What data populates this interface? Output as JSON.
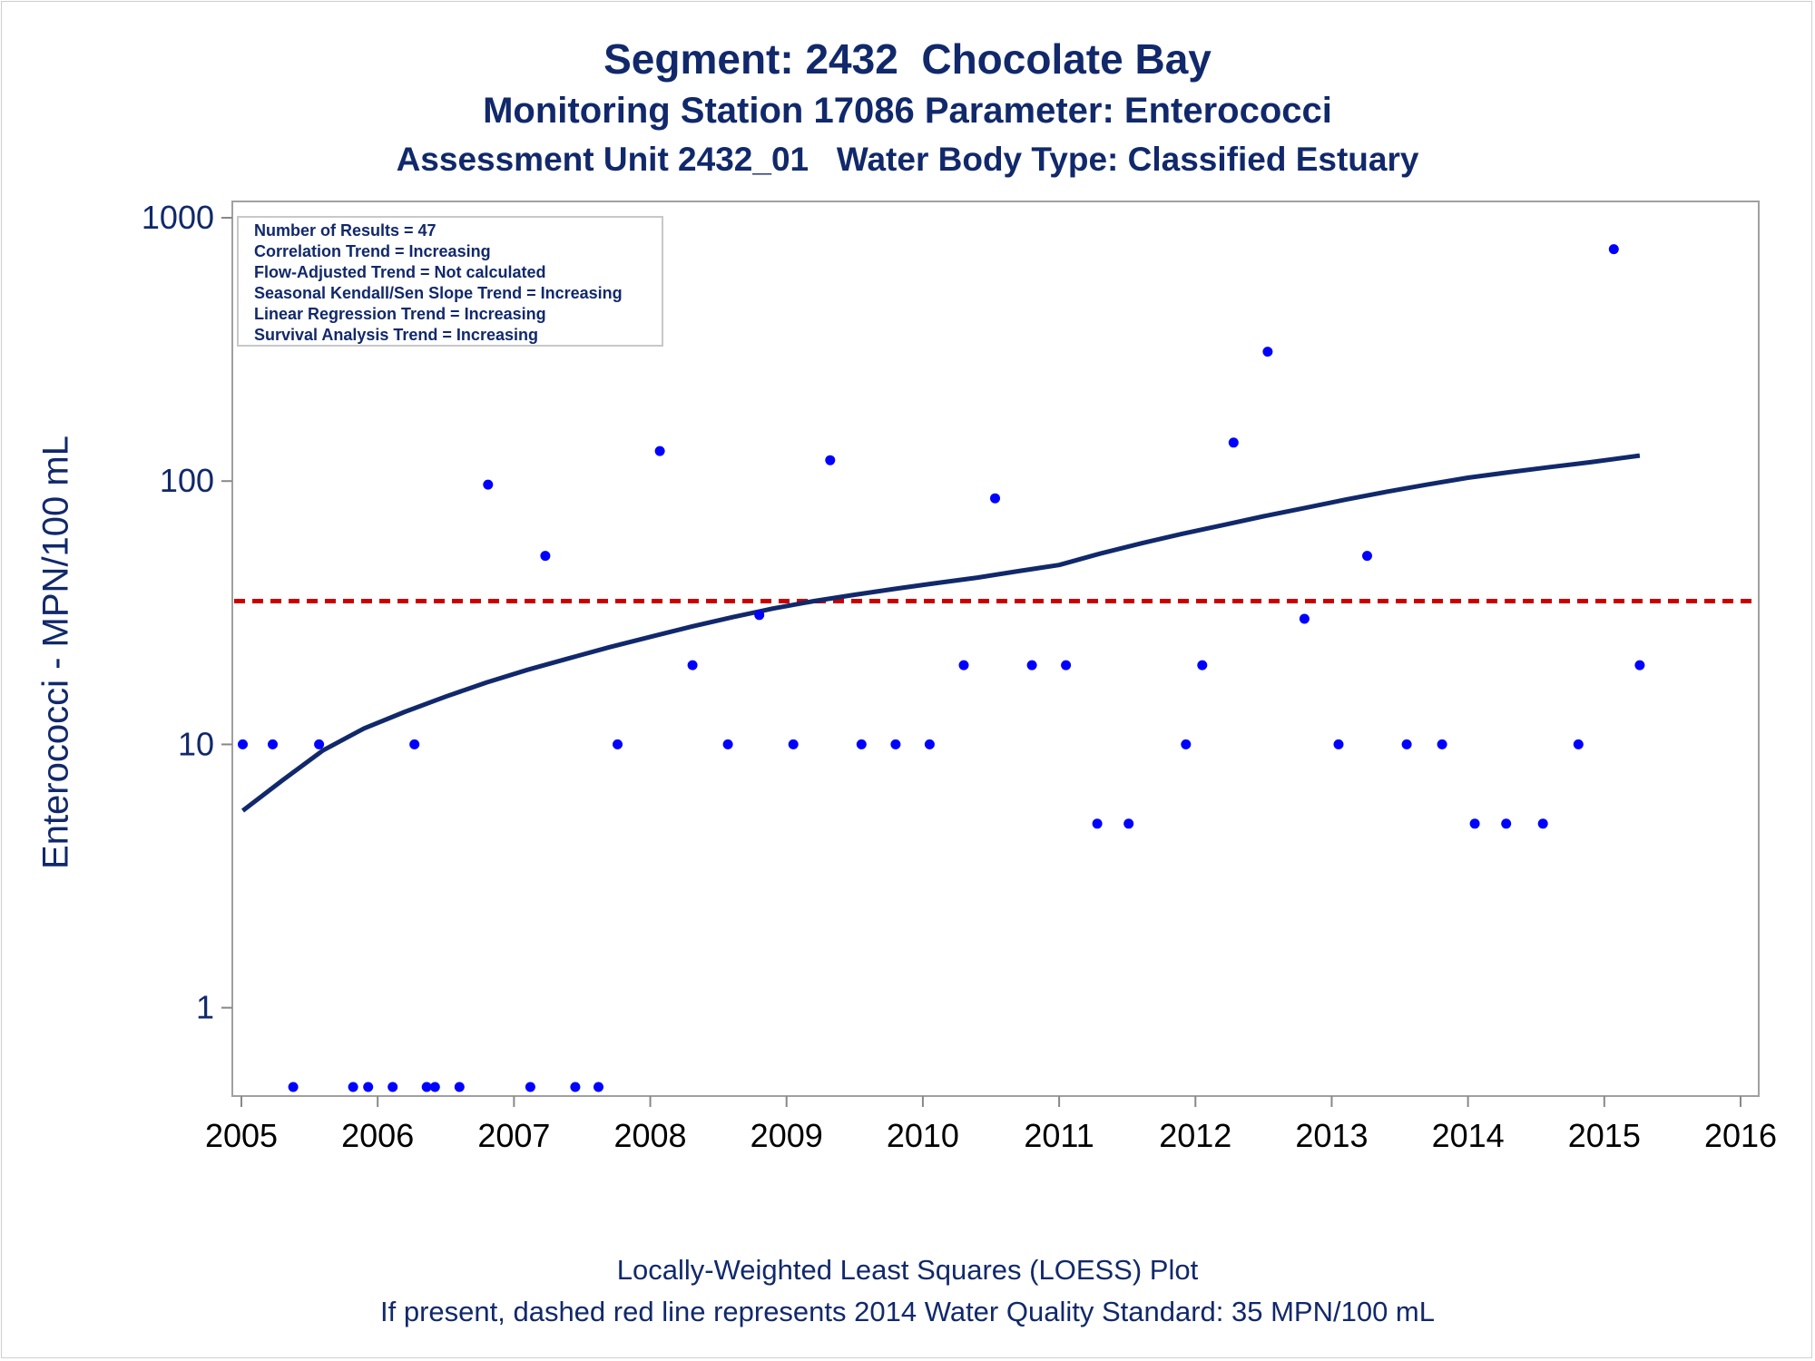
{
  "titles": {
    "line1": "Segment: 2432  Chocolate Bay",
    "line2": "Monitoring Station 17086 Parameter: Enterococci",
    "line3": "Assessment Unit 2432_01   Water Body Type: Classified Estuary"
  },
  "footnotes": {
    "line1": "Locally-Weighted Least Squares (LOESS) Plot",
    "line2": "If present, dashed red line represents 2014 Water Quality Standard: 35 MPN/100 mL"
  },
  "info_box": [
    "Number of Results = 47",
    "Correlation Trend = Increasing",
    "Flow-Adjusted Trend = Not calculated",
    "Seasonal Kendall/Sen Slope Trend = Increasing",
    "Linear Regression Trend = Increasing",
    "Survival Analysis Trend = Increasing"
  ],
  "chart_data": {
    "type": "scatter",
    "title": "Segment: 2432  Chocolate Bay",
    "xlabel": "",
    "ylabel": "Enterococci - MPN/100 mL",
    "y_scale": "log",
    "xlim": [
      2005,
      2016
    ],
    "ylim": [
      0.5,
      1000
    ],
    "x_ticks": [
      "2005",
      "2006",
      "2007",
      "2008",
      "2009",
      "2010",
      "2011",
      "2012",
      "2013",
      "2014",
      "2015",
      "2016"
    ],
    "y_ticks": [
      "1",
      "10",
      "100",
      "1000"
    ],
    "grid": false,
    "colors": {
      "points": "#0000ff",
      "loess": "#11296b",
      "standard": "#cc0000",
      "text": "#11296b"
    },
    "series": [
      {
        "type": "scatter",
        "x": [
          2005.01,
          2005.23,
          2005.38,
          2005.57,
          2005.82,
          2005.93,
          2006.11,
          2006.27,
          2006.36,
          2006.42,
          2006.6,
          2006.81,
          2007.12,
          2007.23,
          2007.45,
          2007.62,
          2007.76,
          2008.07,
          2008.31,
          2008.57,
          2008.8,
          2009.05,
          2009.32,
          2009.55,
          2009.8,
          2010.05,
          2010.3,
          2010.53,
          2010.8,
          2011.05,
          2011.28,
          2011.51,
          2011.93,
          2012.05,
          2012.28,
          2012.53,
          2012.8,
          2013.05,
          2013.26,
          2013.55,
          2013.81,
          2014.05,
          2014.28,
          2014.55,
          2014.81,
          2015.07,
          2015.26
        ],
        "y": [
          10,
          10,
          0.5,
          10,
          0.5,
          0.5,
          0.5,
          10,
          0.5,
          0.5,
          0.5,
          97,
          0.5,
          52,
          0.5,
          0.5,
          10,
          130,
          20,
          10,
          31,
          10,
          120,
          10,
          10,
          10,
          20,
          86,
          20,
          20,
          5,
          5,
          10,
          20,
          140,
          310,
          30,
          10,
          52,
          10,
          10,
          5,
          5,
          5,
          10,
          760,
          20
        ]
      },
      {
        "type": "line",
        "x": [
          2005.01,
          2005.3,
          2005.6,
          2005.9,
          2006.2,
          2006.5,
          2006.8,
          2007.1,
          2007.4,
          2007.7,
          2008.0,
          2008.3,
          2008.6,
          2008.9,
          2009.2,
          2009.5,
          2009.8,
          2010.1,
          2010.4,
          2010.7,
          2011.0,
          2011.3,
          2011.6,
          2011.9,
          2012.2,
          2012.5,
          2012.8,
          2013.1,
          2013.4,
          2013.7,
          2014.0,
          2014.3,
          2014.6,
          2014.9,
          2015.26
        ],
        "y": [
          5.6,
          7.3,
          9.5,
          11.5,
          13.3,
          15.2,
          17.2,
          19.2,
          21.2,
          23.4,
          25.6,
          28.0,
          30.4,
          32.8,
          35.0,
          37.0,
          39.0,
          41.0,
          43.0,
          45.5,
          48.0,
          53.0,
          58.0,
          63.0,
          68.0,
          73.5,
          79.0,
          85.0,
          91.0,
          97.0,
          103.0,
          108.0,
          113.0,
          118.0,
          125.0
        ]
      },
      {
        "type": "reference-line",
        "y": 35
      }
    ]
  }
}
